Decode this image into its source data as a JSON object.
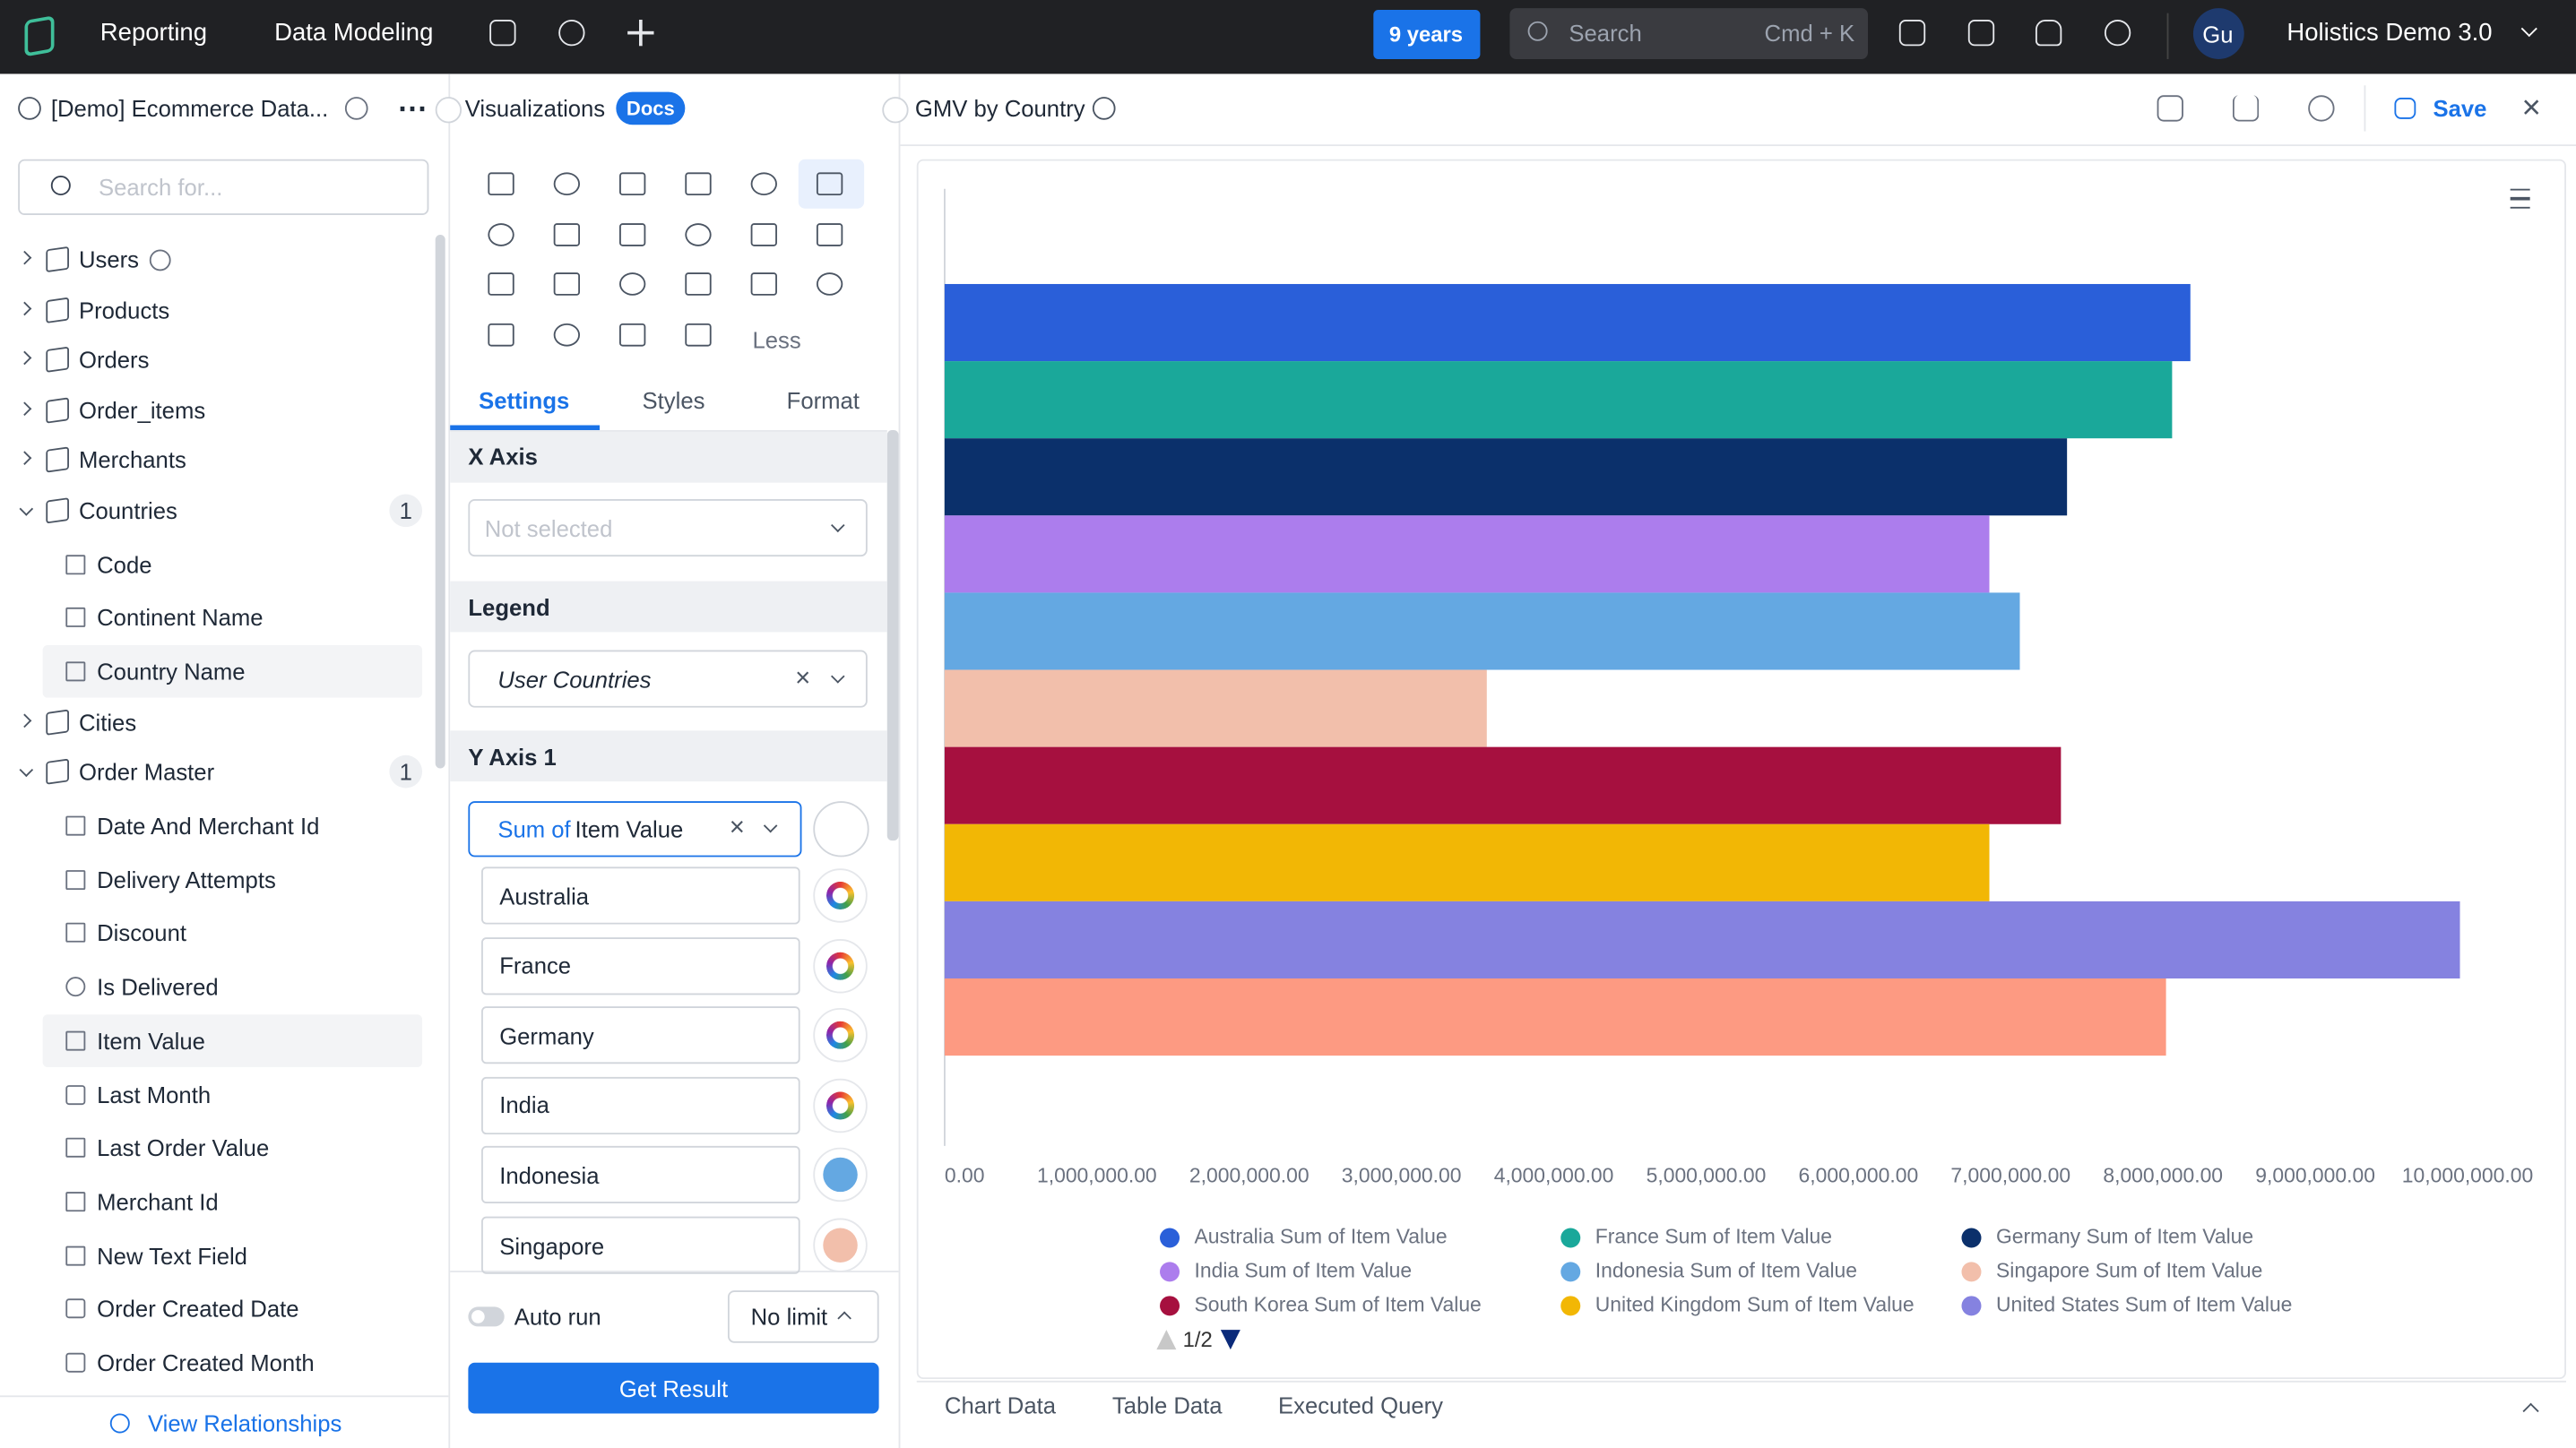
{
  "top_nav": {
    "tabs": [
      "Reporting",
      "Data Modeling"
    ],
    "date_badge": "9 years",
    "search": "Search",
    "shortcut": "Cmd + K",
    "avatar": "Gu",
    "workspace": "Holistics Demo 3.0"
  },
  "sidebar": {
    "title": "[Demo] Ecommerce Data...",
    "search_placeholder": "Search for...",
    "footer": "View Relationships",
    "items": [
      {
        "label": "Users",
        "kind": "model",
        "info": true
      },
      {
        "label": "Products",
        "kind": "model"
      },
      {
        "label": "Orders",
        "kind": "model"
      },
      {
        "label": "Order_items",
        "kind": "model"
      },
      {
        "label": "Merchants",
        "kind": "model"
      },
      {
        "label": "Countries",
        "kind": "model",
        "expanded": true,
        "count": 1
      },
      {
        "label": "Code",
        "kind": "field",
        "icon": "text"
      },
      {
        "label": "Continent Name",
        "kind": "field",
        "icon": "text"
      },
      {
        "label": "Country Name",
        "kind": "field",
        "icon": "text",
        "selected": true
      },
      {
        "label": "Cities",
        "kind": "model"
      },
      {
        "label": "Order Master",
        "kind": "model",
        "expanded": true,
        "count": 1
      },
      {
        "label": "Date And Merchant Id",
        "kind": "field",
        "icon": "text"
      },
      {
        "label": "Delivery Attempts",
        "kind": "field",
        "icon": "number"
      },
      {
        "label": "Discount",
        "kind": "field",
        "icon": "number"
      },
      {
        "label": "Is Delivered",
        "kind": "field",
        "icon": "bool"
      },
      {
        "label": "Item Value",
        "kind": "field",
        "icon": "number",
        "selected": true
      },
      {
        "label": "Last Month",
        "kind": "field",
        "icon": "date"
      },
      {
        "label": "Last Order Value",
        "kind": "field",
        "icon": "number"
      },
      {
        "label": "Merchant Id",
        "kind": "field",
        "icon": "number"
      },
      {
        "label": "New Text Field",
        "kind": "field",
        "icon": "text"
      },
      {
        "label": "Order Created Date",
        "kind": "field",
        "icon": "date"
      },
      {
        "label": "Order Created Month",
        "kind": "field",
        "icon": "date"
      }
    ]
  },
  "viz_panel": {
    "title": "Visualizations",
    "docs": "Docs",
    "less": "Less",
    "tabs": [
      "Settings",
      "Styles",
      "Format"
    ],
    "x_axis": {
      "title": "X Axis",
      "placeholder": "Not selected"
    },
    "legend": {
      "title": "Legend",
      "value": "User Countries"
    },
    "y_axis": {
      "title": "Y Axis 1",
      "agg": "Sum of",
      "field": "Item Value",
      "series": [
        {
          "name": "Australia",
          "color": null
        },
        {
          "name": "France",
          "color": null
        },
        {
          "name": "Germany",
          "color": null
        },
        {
          "name": "India",
          "color": null
        },
        {
          "name": "Indonesia",
          "color": "#64a8e2"
        },
        {
          "name": "Singapore",
          "color": "#f2bfab"
        }
      ]
    },
    "auto_run": "Auto run",
    "limit": "No limit",
    "run": "Get Result"
  },
  "chart_header": {
    "title": "GMV by Country",
    "save": "Save"
  },
  "bottom_tabs": [
    "Chart Data",
    "Table Data",
    "Executed Query"
  ],
  "chart_data": {
    "type": "hbar",
    "xlim": [
      0,
      10000000
    ],
    "xticks": [
      {
        "value": 0,
        "label": "0.00"
      },
      {
        "value": 1000000,
        "label": "1,000,000.00"
      },
      {
        "value": 2000000,
        "label": "2,000,000.00"
      },
      {
        "value": 3000000,
        "label": "3,000,000.00"
      },
      {
        "value": 4000000,
        "label": "4,000,000.00"
      },
      {
        "value": 5000000,
        "label": "5,000,000.00"
      },
      {
        "value": 6000000,
        "label": "6,000,000.00"
      },
      {
        "value": 7000000,
        "label": "7,000,000.00"
      },
      {
        "value": 8000000,
        "label": "8,000,000.00"
      },
      {
        "value": 9000000,
        "label": "9,000,000.00"
      },
      {
        "value": 10000000,
        "label": "10,000,000.00"
      }
    ],
    "grid": false,
    "legend_page": "1/2",
    "series": [
      {
        "name": "Australia Sum of Item Value",
        "color": "#2a5fd9",
        "values": [
          8180000
        ]
      },
      {
        "name": "France Sum of Item Value",
        "color": "#1aa89a",
        "values": [
          8060000
        ]
      },
      {
        "name": "Germany Sum of Item Value",
        "color": "#0b306b",
        "values": [
          7370000
        ]
      },
      {
        "name": "India Sum of Item Value",
        "color": "#ac7ded",
        "values": [
          6860000
        ]
      },
      {
        "name": "Indonesia Sum of Item Value",
        "color": "#64a8e2",
        "values": [
          7060000
        ]
      },
      {
        "name": "Singapore Sum of Item Value",
        "color": "#f2bfab",
        "values": [
          3560000
        ]
      },
      {
        "name": "South Korea Sum of Item Value",
        "color": "#a6103f",
        "values": [
          7330000
        ]
      },
      {
        "name": "United Kingdom Sum of Item Value",
        "color": "#f2b705",
        "values": [
          6860000
        ]
      },
      {
        "name": "United States Sum of Item Value",
        "color": "#8582e0",
        "values": [
          9950000
        ]
      },
      {
        "name": null,
        "color": "#fd9a82",
        "values": [
          8020000
        ]
      }
    ]
  }
}
